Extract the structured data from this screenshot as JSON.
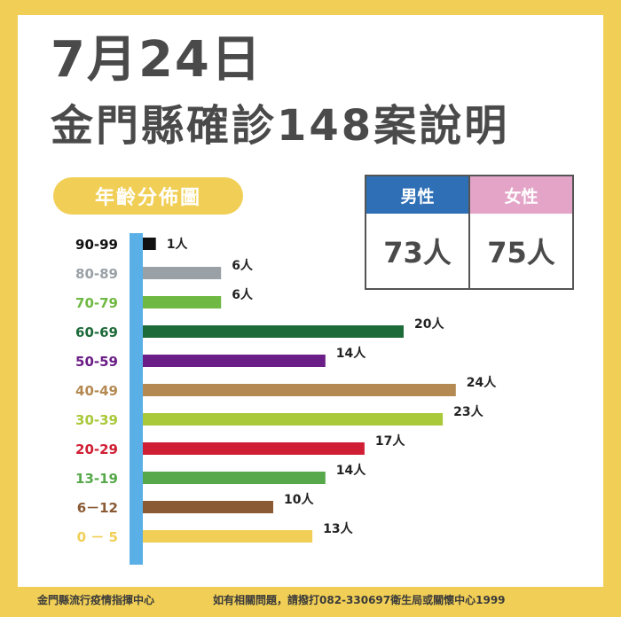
{
  "header": {
    "date": "7月24日",
    "title": "金門縣確診148案說明"
  },
  "section_label": "年齡分佈圖",
  "gender": {
    "male_label": "男性",
    "male_value": "73人",
    "female_label": "女性",
    "female_value": "75人",
    "male_color": "#2e6fb5",
    "female_color": "#e3a4c7"
  },
  "chart_data": {
    "type": "bar",
    "orientation": "horizontal",
    "categories": [
      "90-99",
      "80-89",
      "70-79",
      "60-69",
      "50-59",
      "40-49",
      "30-39",
      "20-29",
      "13-19",
      "6－12",
      "0 － 5"
    ],
    "values": [
      1,
      6,
      6,
      20,
      14,
      24,
      23,
      17,
      14,
      10,
      13
    ],
    "value_labels": [
      "1人",
      "6人",
      "6人",
      "20人",
      "14人",
      "24人",
      "23人",
      "17人",
      "14人",
      "10人",
      "13人"
    ],
    "colors": [
      "#111111",
      "#9aa1a6",
      "#6fb843",
      "#1e6b3a",
      "#6b1e87",
      "#b48a52",
      "#a9c93a",
      "#d01e34",
      "#56a84a",
      "#8a5a34",
      "#f1cf56"
    ],
    "axis_color": "#5ab0e6"
  },
  "footer": {
    "left": "金門縣流行疫情指揮中心",
    "right": "如有相關問題，請撥打082-330697衛生局或關懷中心1999"
  }
}
